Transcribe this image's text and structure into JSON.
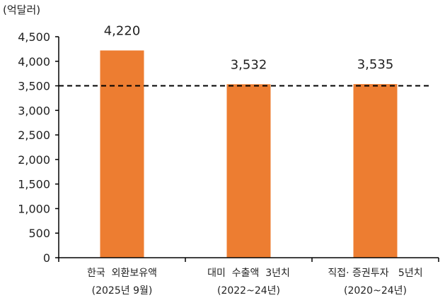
{
  "chart_data": {
    "type": "bar",
    "unit": "(억달러)",
    "categories": [
      {
        "line1": "한국  외환보유액",
        "line2": "(2025년 9월)"
      },
      {
        "line1": "대미  수출액  3년치",
        "line2": "(2022~24년)"
      },
      {
        "line1": "직접· 증권투자   5년치",
        "line2": "(2020~24년)"
      }
    ],
    "values": [
      4220,
      3532,
      3535
    ],
    "data_labels": [
      "4,220",
      "3,532",
      "3,535"
    ],
    "ylim": [
      0,
      4500
    ],
    "yticks": [
      0,
      500,
      1000,
      1500,
      2000,
      2500,
      3000,
      3500,
      4000,
      4500
    ],
    "ytick_labels": [
      "0",
      "500",
      "1,000",
      "1,500",
      "2,000",
      "2,500",
      "3,000",
      "3,500",
      "4,000",
      "4,500"
    ],
    "reference_line": {
      "value": 3500,
      "style": "dashed"
    },
    "bar_color": "#ED7D31",
    "axis_color": "#000000",
    "grid": false,
    "legend": "none"
  }
}
